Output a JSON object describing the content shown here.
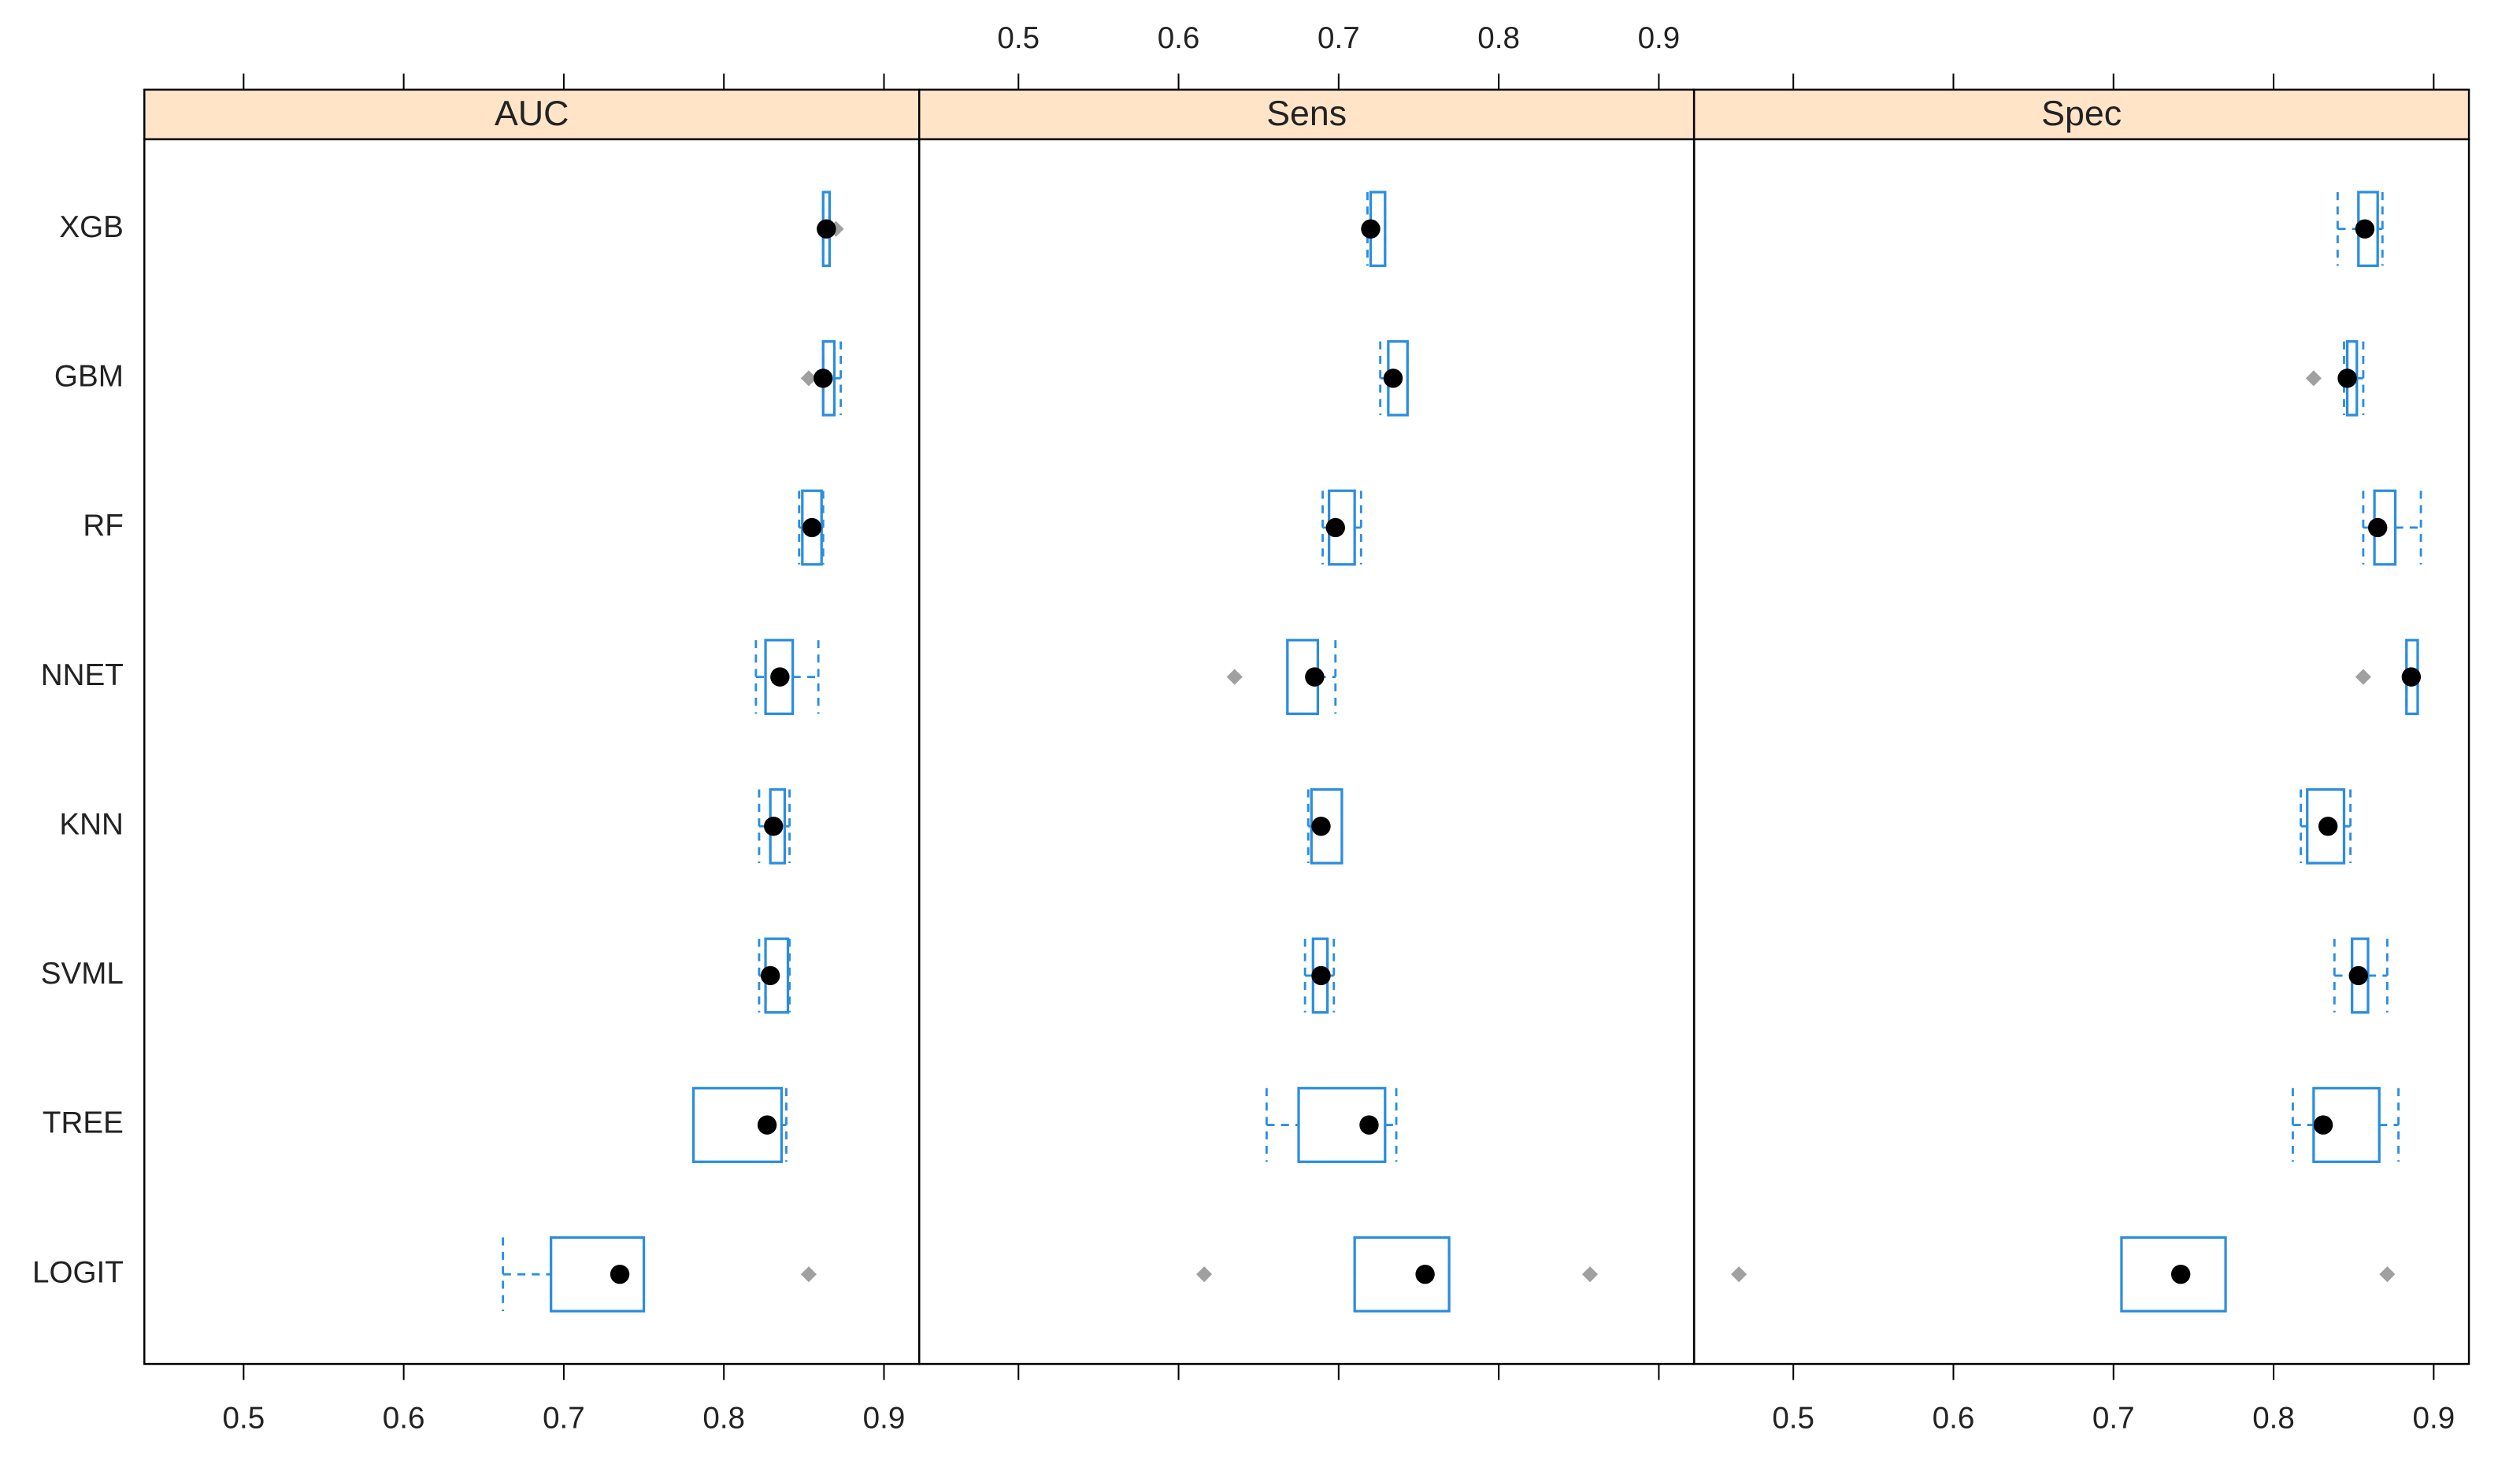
{
  "chart_data": [
    {
      "type": "box",
      "title": "AUC",
      "categories": [
        "XGB",
        "GBM",
        "RF",
        "NNET",
        "KNN",
        "SVML",
        "TREE",
        "LOGIT"
      ],
      "xlim": [
        0.438,
        0.922
      ],
      "xticks": [
        0.5,
        0.6,
        0.7,
        0.8,
        0.9
      ],
      "xaxis_position": "bottom",
      "box_color": "#2b8de0",
      "median_color": "#000000",
      "outlier_color": "#a0a0a0",
      "strip_color": "#ffe4c8",
      "boxes": [
        {
          "min": 0.862,
          "q1": 0.862,
          "median": 0.864,
          "q3": 0.866,
          "max": 0.866,
          "outliers": [
            0.87
          ]
        },
        {
          "min": 0.862,
          "q1": 0.862,
          "median": 0.862,
          "q3": 0.869,
          "max": 0.873,
          "outliers": [
            0.853
          ]
        },
        {
          "min": 0.847,
          "q1": 0.849,
          "median": 0.855,
          "q3": 0.861,
          "max": 0.862,
          "outliers": []
        },
        {
          "min": 0.82,
          "q1": 0.826,
          "median": 0.835,
          "q3": 0.843,
          "max": 0.859,
          "outliers": []
        },
        {
          "min": 0.822,
          "q1": 0.829,
          "median": 0.831,
          "q3": 0.838,
          "max": 0.841,
          "outliers": []
        },
        {
          "min": 0.822,
          "q1": 0.826,
          "median": 0.829,
          "q3": 0.84,
          "max": 0.841,
          "outliers": []
        },
        {
          "min": 0.781,
          "q1": 0.781,
          "median": 0.827,
          "q3": 0.836,
          "max": 0.839,
          "outliers": []
        },
        {
          "min": 0.662,
          "q1": 0.692,
          "median": 0.735,
          "q3": 0.75,
          "max": 0.75,
          "outliers": [
            0.853
          ]
        }
      ]
    },
    {
      "type": "box",
      "title": "Sens",
      "xlim": [
        0.438,
        0.922
      ],
      "xticks": [
        0.5,
        0.6,
        0.7,
        0.8,
        0.9
      ],
      "xaxis_position": "top",
      "box_color": "#2b8de0",
      "median_color": "#000000",
      "outlier_color": "#a0a0a0",
      "strip_color": "#ffe4c8",
      "boxes": [
        {
          "min": 0.718,
          "q1": 0.72,
          "median": 0.72,
          "q3": 0.729,
          "max": 0.729,
          "outliers": []
        },
        {
          "min": 0.726,
          "q1": 0.731,
          "median": 0.734,
          "q3": 0.743,
          "max": 0.743,
          "outliers": []
        },
        {
          "min": 0.69,
          "q1": 0.694,
          "median": 0.698,
          "q3": 0.71,
          "max": 0.714,
          "outliers": []
        },
        {
          "min": 0.668,
          "q1": 0.668,
          "median": 0.685,
          "q3": 0.687,
          "max": 0.698,
          "outliers": [
            0.635
          ]
        },
        {
          "min": 0.681,
          "q1": 0.683,
          "median": 0.689,
          "q3": 0.702,
          "max": 0.702,
          "outliers": []
        },
        {
          "min": 0.679,
          "q1": 0.684,
          "median": 0.689,
          "q3": 0.693,
          "max": 0.697,
          "outliers": []
        },
        {
          "min": 0.655,
          "q1": 0.675,
          "median": 0.719,
          "q3": 0.729,
          "max": 0.736,
          "outliers": []
        },
        {
          "min": 0.71,
          "q1": 0.71,
          "median": 0.754,
          "q3": 0.769,
          "max": 0.769,
          "outliers": [
            0.616,
            0.857
          ]
        }
      ]
    },
    {
      "type": "box",
      "title": "Spec",
      "xlim": [
        0.438,
        0.922
      ],
      "xticks": [
        0.5,
        0.6,
        0.7,
        0.8,
        0.9
      ],
      "xaxis_position": "bottom",
      "box_color": "#2b8de0",
      "median_color": "#000000",
      "outlier_color": "#a0a0a0",
      "strip_color": "#ffe4c8",
      "boxes": [
        {
          "min": 0.84,
          "q1": 0.853,
          "median": 0.857,
          "q3": 0.865,
          "max": 0.868,
          "outliers": []
        },
        {
          "min": 0.844,
          "q1": 0.846,
          "median": 0.846,
          "q3": 0.852,
          "max": 0.856,
          "outliers": [
            0.825
          ]
        },
        {
          "min": 0.856,
          "q1": 0.863,
          "median": 0.865,
          "q3": 0.876,
          "max": 0.892,
          "outliers": []
        },
        {
          "min": 0.883,
          "q1": 0.883,
          "median": 0.886,
          "q3": 0.89,
          "max": 0.89,
          "outliers": [
            0.856
          ]
        },
        {
          "min": 0.817,
          "q1": 0.821,
          "median": 0.834,
          "q3": 0.844,
          "max": 0.848,
          "outliers": []
        },
        {
          "min": 0.838,
          "q1": 0.849,
          "median": 0.853,
          "q3": 0.859,
          "max": 0.871,
          "outliers": []
        },
        {
          "min": 0.812,
          "q1": 0.825,
          "median": 0.831,
          "q3": 0.866,
          "max": 0.878,
          "outliers": []
        },
        {
          "min": 0.705,
          "q1": 0.705,
          "median": 0.742,
          "q3": 0.77,
          "max": 0.77,
          "outliers": [
            0.466,
            0.871
          ]
        }
      ]
    }
  ]
}
